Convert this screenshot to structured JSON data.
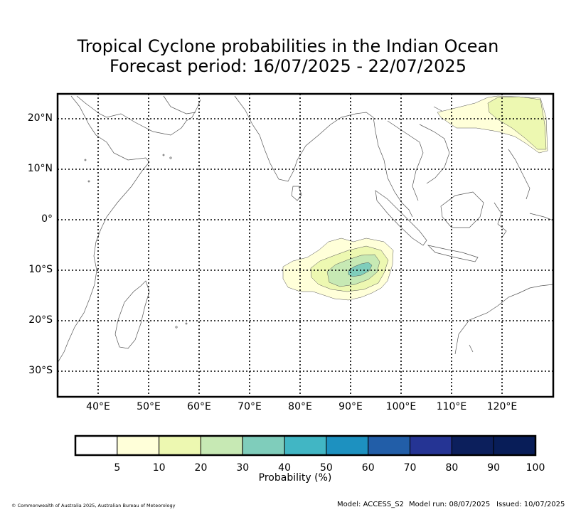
{
  "title": {
    "line1": "Tropical Cyclone probabilities in the Indian Ocean",
    "line2": "Forecast period: 16/07/2025 - 22/07/2025"
  },
  "map": {
    "lat_labels": [
      "20°N",
      "10°N",
      "0°",
      "10°S",
      "20°S",
      "30°S"
    ],
    "lon_labels": [
      "40°E",
      "50°E",
      "60°E",
      "70°E",
      "80°E",
      "90°E",
      "100°E",
      "110°E",
      "120°E"
    ],
    "colors": {
      "coast": "#555555",
      "grid": "#000000"
    }
  },
  "colorbar": {
    "title": "Probability (%)",
    "tick_labels": [
      "5",
      "10",
      "20",
      "30",
      "40",
      "50",
      "60",
      "70",
      "80",
      "90",
      "100"
    ],
    "colors": [
      "#ffffff",
      "#ffffd9",
      "#edf8b1",
      "#c7e9b4",
      "#7fcdbb",
      "#41b6c4",
      "#1d91c0",
      "#225ea8",
      "#253494",
      "#0c1f5c",
      "#081d58"
    ]
  },
  "footer": {
    "copyright": "© Commonwealth of Australia 2025, Australian Bureau of Meteorology",
    "model": "Model: ACCESS_S2",
    "model_run": "Model run: 08/07/2025",
    "issued": "Issued: 10/07/2025"
  }
}
